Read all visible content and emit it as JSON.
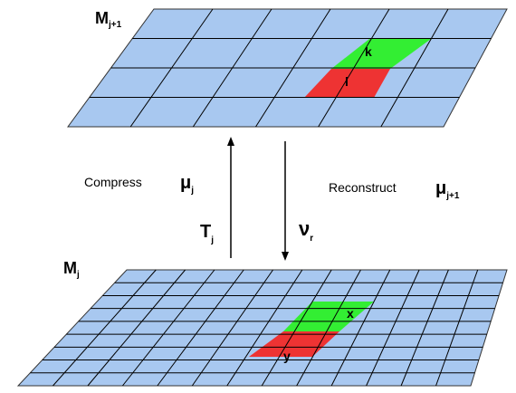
{
  "top_mesh": {
    "label": "M",
    "label_sub": "j+1",
    "cell_k": "k",
    "cell_l": "l"
  },
  "bottom_mesh": {
    "label": "M",
    "label_sub": "j",
    "cell_x": "x",
    "cell_y": "y"
  },
  "compress": {
    "text": "Compress",
    "symbol": "μ",
    "symbol_sub": "j",
    "operator": "T",
    "operator_sub": "j"
  },
  "reconstruct": {
    "text": "Reconstruct",
    "symbol": "μ",
    "symbol_sub": "j+1",
    "operator": "ν",
    "operator_sub": "r"
  },
  "colors": {
    "mesh_fill": "#a8c8f0",
    "grid_line": "#000000",
    "highlight_green": "#33ee33",
    "highlight_red": "#ee3333"
  }
}
